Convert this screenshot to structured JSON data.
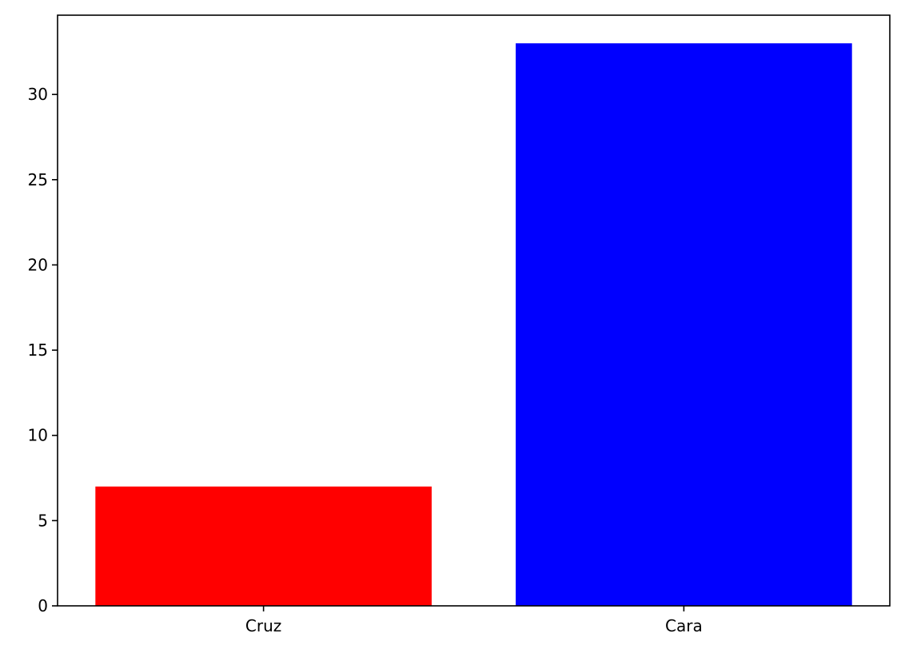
{
  "chart_data": {
    "type": "bar",
    "title": "",
    "xlabel": "",
    "ylabel": "",
    "categories": [
      "Cruz",
      "Cara"
    ],
    "values": [
      7,
      33
    ],
    "bar_colors": [
      "#ff0000",
      "#0000ff"
    ],
    "ylim": [
      0,
      34.65
    ],
    "yticks": [
      0,
      5,
      10,
      15,
      20,
      25,
      30
    ],
    "grid": false,
    "legend": "none"
  }
}
